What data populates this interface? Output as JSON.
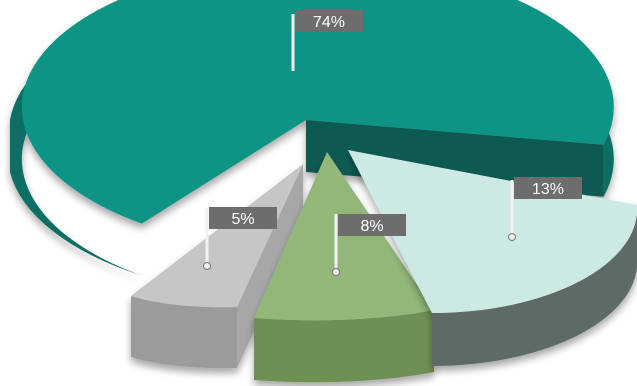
{
  "chart_data": {
    "type": "pie",
    "style": "3d-exploded",
    "legend": "none",
    "slices": [
      {
        "label": "74%",
        "value": 74,
        "color": "#0c9484"
      },
      {
        "label": "13%",
        "value": 13,
        "color": "#cde9e3"
      },
      {
        "label": "8%",
        "value": 8,
        "color": "#92b779"
      },
      {
        "label": "5%",
        "value": 5,
        "color": "#c6c6c6"
      }
    ],
    "label_box_color": "#6d6d6d",
    "label_text_color": "#ffffff"
  }
}
